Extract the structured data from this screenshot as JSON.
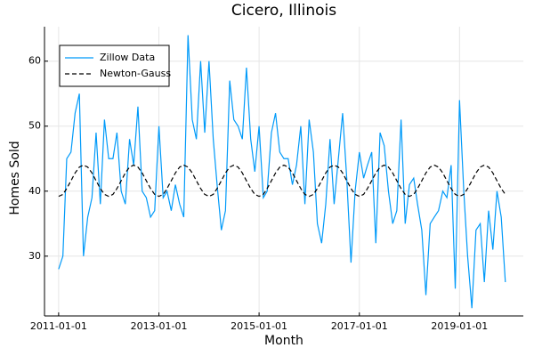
{
  "chart_data": {
    "type": "line",
    "title": "Cicero, Illinois",
    "x_label": "Month",
    "y_label": "Homes Sold",
    "x": [
      "2011-01-01",
      "2011-02-01",
      "2011-03-01",
      "2011-04-01",
      "2011-05-01",
      "2011-06-01",
      "2011-07-01",
      "2011-08-01",
      "2011-09-01",
      "2011-10-01",
      "2011-11-01",
      "2011-12-01",
      "2012-01-01",
      "2012-02-01",
      "2012-03-01",
      "2012-04-01",
      "2012-05-01",
      "2012-06-01",
      "2012-07-01",
      "2012-08-01",
      "2012-09-01",
      "2012-10-01",
      "2012-11-01",
      "2012-12-01",
      "2013-01-01",
      "2013-02-01",
      "2013-03-01",
      "2013-04-01",
      "2013-05-01",
      "2013-06-01",
      "2013-07-01",
      "2013-08-01",
      "2013-09-01",
      "2013-10-01",
      "2013-11-01",
      "2013-12-01",
      "2014-01-01",
      "2014-02-01",
      "2014-03-01",
      "2014-04-01",
      "2014-05-01",
      "2014-06-01",
      "2014-07-01",
      "2014-08-01",
      "2014-09-01",
      "2014-10-01",
      "2014-11-01",
      "2014-12-01",
      "2015-01-01",
      "2015-02-01",
      "2015-03-01",
      "2015-04-01",
      "2015-05-01",
      "2015-06-01",
      "2015-07-01",
      "2015-08-01",
      "2015-09-01",
      "2015-10-01",
      "2015-11-01",
      "2015-12-01",
      "2016-01-01",
      "2016-02-01",
      "2016-03-01",
      "2016-04-01",
      "2016-05-01",
      "2016-06-01",
      "2016-07-01",
      "2016-08-01",
      "2016-09-01",
      "2016-10-01",
      "2016-11-01",
      "2016-12-01",
      "2017-01-01",
      "2017-02-01",
      "2017-03-01",
      "2017-04-01",
      "2017-05-01",
      "2017-06-01",
      "2017-07-01",
      "2017-08-01",
      "2017-09-01",
      "2017-10-01",
      "2017-11-01",
      "2017-12-01",
      "2018-01-01",
      "2018-02-01",
      "2018-03-01",
      "2018-04-01",
      "2018-05-01",
      "2018-06-01",
      "2018-07-01",
      "2018-08-01",
      "2018-09-01",
      "2018-10-01",
      "2018-11-01",
      "2018-12-01",
      "2019-01-01",
      "2019-02-01",
      "2019-03-01",
      "2019-04-01",
      "2019-05-01",
      "2019-06-01",
      "2019-07-01",
      "2019-08-01",
      "2019-09-01",
      "2019-10-01",
      "2019-11-01",
      "2019-12-01"
    ],
    "series": [
      {
        "name": "Zillow Data",
        "color": "#009af9",
        "dash": false,
        "values": [
          28,
          30,
          45,
          46,
          52,
          55,
          30,
          36,
          39,
          49,
          38,
          51,
          45,
          45,
          49,
          40,
          38,
          48,
          44,
          53,
          40,
          39,
          36,
          37,
          50,
          39,
          40,
          37,
          41,
          38,
          36,
          64,
          51,
          48,
          60,
          49,
          60,
          48,
          41,
          34,
          37,
          57,
          51,
          50,
          48,
          59,
          48,
          43,
          50,
          39,
          40,
          49,
          52,
          46,
          45,
          45,
          41,
          44,
          50,
          38,
          51,
          46,
          35,
          32,
          38,
          48,
          38,
          45,
          52,
          42,
          29,
          40,
          46,
          42,
          44,
          46,
          32,
          49,
          47,
          40,
          35,
          37,
          51,
          35,
          41,
          42,
          38,
          34,
          24,
          35,
          36,
          37,
          40,
          39,
          44,
          25,
          54,
          40,
          30,
          22,
          34,
          35,
          26,
          37,
          31,
          40,
          36,
          26
        ]
      },
      {
        "name": "Newton-Gauss",
        "color": "#000000",
        "dash": true,
        "values": [
          39.2,
          39.5,
          40.4,
          41.6,
          42.8,
          43.7,
          44.0,
          43.7,
          42.8,
          41.6,
          40.4,
          39.5,
          39.2,
          39.5,
          40.4,
          41.6,
          42.8,
          43.7,
          44.0,
          43.7,
          42.8,
          41.6,
          40.4,
          39.5,
          39.2,
          39.5,
          40.4,
          41.6,
          42.8,
          43.7,
          44.0,
          43.7,
          42.8,
          41.6,
          40.4,
          39.5,
          39.2,
          39.5,
          40.4,
          41.6,
          42.8,
          43.7,
          44.0,
          43.7,
          42.8,
          41.6,
          40.4,
          39.5,
          39.2,
          39.5,
          40.4,
          41.6,
          42.8,
          43.7,
          44.0,
          43.7,
          42.8,
          41.6,
          40.4,
          39.5,
          39.2,
          39.5,
          40.4,
          41.6,
          42.8,
          43.7,
          44.0,
          43.7,
          42.8,
          41.6,
          40.4,
          39.5,
          39.2,
          39.5,
          40.4,
          41.6,
          42.8,
          43.7,
          44.0,
          43.7,
          42.8,
          41.6,
          40.4,
          39.5,
          39.2,
          39.5,
          40.4,
          41.6,
          42.8,
          43.7,
          44.0,
          43.7,
          42.8,
          41.6,
          40.4,
          39.5,
          39.2,
          39.5,
          40.4,
          41.6,
          42.8,
          43.7,
          44.0,
          43.7,
          42.8,
          41.6,
          40.4,
          39.5
        ]
      }
    ],
    "xlim": [
      "2010-09-20",
      "2020-04-10"
    ],
    "xticks": [
      "2011-01-01",
      "2013-01-01",
      "2015-01-01",
      "2017-01-01",
      "2019-01-01"
    ],
    "ylim": [
      20.8,
      65.3
    ],
    "yticks": [
      30,
      40,
      50,
      60
    ],
    "grid": true,
    "legend": "top-left"
  }
}
